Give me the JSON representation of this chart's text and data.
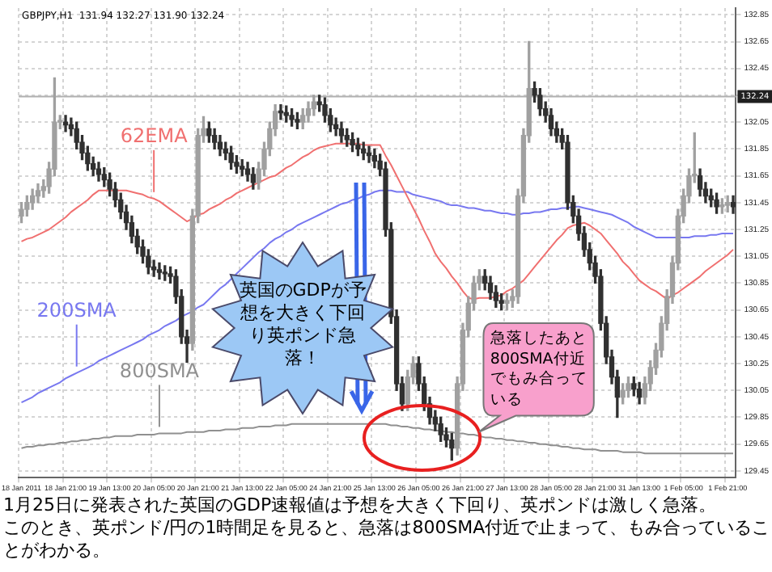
{
  "chart_data": {
    "type": "candlestick",
    "title": "GBPJPY,H1  131.94 132.27 131.90 132.24",
    "colors": [
      "#a0a0a0",
      "#a0a0a0",
      "#a0a0a0",
      "#a0a0a0",
      "#a0a0a0",
      "#a0a0a0",
      "#a0a0a0",
      "#a0a0a0",
      "#303030",
      "#303030",
      "#303030",
      "#303030",
      "#303030",
      "#303030",
      "#303030",
      "#303030",
      "#303030",
      "#303030",
      "#303030",
      "#303030",
      "#303030",
      "#303030",
      "#303030",
      "#303030",
      "#303030",
      "#303030",
      "#303030",
      "#303030",
      "#303030",
      "#303030",
      "#303030",
      "#a0a0a0",
      "#a0a0a0",
      "#a0a0a0",
      "#303030",
      "#303030",
      "#303030",
      "#303030",
      "#303030",
      "#303030",
      "#303030",
      "#303030",
      "#303030",
      "#a0a0a0",
      "#a0a0a0",
      "#a0a0a0",
      "#a0a0a0",
      "#303030",
      "#303030",
      "#303030",
      "#303030",
      "#a0a0a0",
      "#a0a0a0",
      "#a0a0a0",
      "#303030",
      "#303030",
      "#303030",
      "#303030",
      "#303030",
      "#303030",
      "#303030",
      "#303030",
      "#303030",
      "#303030",
      "#303030",
      "#303030",
      "#303030",
      "#303030",
      "#303030",
      "#303030",
      "#a0a0a0",
      "#a0a0a0",
      "#303030",
      "#303030",
      "#303030",
      "#303030",
      "#303030",
      "#303030",
      "#303030",
      "#a0a0a0",
      "#a0a0a0",
      "#a0a0a0",
      "#a0a0a0",
      "#a0a0a0",
      "#303030",
      "#303030",
      "#303030",
      "#303030",
      "#a0a0a0",
      "#a0a0a0",
      "#a0a0a0",
      "#a0a0a0",
      "#a0a0a0",
      "#303030",
      "#303030",
      "#303030",
      "#303030",
      "#303030",
      "#303030",
      "#303030",
      "#303030",
      "#303030",
      "#303030",
      "#303030",
      "#303030",
      "#303030",
      "#303030",
      "#303030",
      "#303030",
      "#a0a0a0",
      "#a0a0a0",
      "#303030",
      "#303030",
      "#a0a0a0",
      "#a0a0a0",
      "#a0a0a0",
      "#a0a0a0",
      "#a0a0a0",
      "#a0a0a0",
      "#a0a0a0",
      "#a0a0a0",
      "#a0a0a0",
      "#a0a0a0",
      "#303030",
      "#303030",
      "#303030",
      "#303030",
      "#a0a0a0",
      "#a0a0a0",
      "#303030"
    ],
    "categories": [
      "18 Jan 2011",
      null,
      null,
      null,
      null,
      null,
      null,
      null,
      "18 Jan 21:00",
      null,
      null,
      null,
      null,
      null,
      null,
      null,
      "19 Jan 13:00",
      null,
      null,
      null,
      null,
      null,
      null,
      null,
      "20 Jan 05:00",
      null,
      null,
      null,
      null,
      null,
      null,
      null,
      "20 Jan 21:00",
      null,
      null,
      null,
      null,
      null,
      null,
      null,
      "21 Jan 13:00",
      null,
      null,
      null,
      null,
      null,
      null,
      null,
      "22 Jan 05:00",
      null,
      null,
      null,
      null,
      null,
      null,
      null,
      "24 Jan 21:00",
      null,
      null,
      null,
      null,
      null,
      null,
      null,
      "25 Jan 13:00",
      null,
      null,
      null,
      null,
      null,
      null,
      null,
      "26 Jan 05:00",
      null,
      null,
      null,
      null,
      null,
      null,
      null,
      "26 Jan 21:00",
      null,
      null,
      null,
      null,
      null,
      null,
      null,
      "27 Jan 13:00",
      null,
      null,
      null,
      null,
      null,
      null,
      null,
      "28 Jan 05:00",
      null,
      null,
      null,
      null,
      null,
      null,
      null,
      "28 Jan 21:00",
      null,
      null,
      null,
      null,
      null,
      null,
      null,
      "31 Jan 13:00",
      null,
      null,
      null,
      null,
      null,
      null,
      null,
      "1 Feb 05:00",
      null,
      null,
      null,
      null,
      null,
      null,
      null,
      "1 Feb 21:00",
      null
    ],
    "ohlc": [
      [
        131.35,
        131.45,
        131.3,
        131.4
      ],
      [
        131.4,
        131.5,
        131.35,
        131.45
      ],
      [
        131.45,
        131.55,
        131.4,
        131.5
      ],
      [
        131.5,
        131.59,
        131.45,
        131.54
      ],
      [
        131.54,
        131.62,
        131.49,
        131.57
      ],
      [
        131.57,
        131.75,
        131.52,
        131.7
      ],
      [
        131.7,
        132.38,
        131.65,
        132.05
      ],
      [
        132.05,
        132.1,
        132.0,
        132.05
      ],
      [
        132.05,
        132.1,
        131.98,
        132.03
      ],
      [
        132.03,
        132.08,
        131.95,
        132.0
      ],
      [
        132.0,
        132.05,
        131.85,
        131.9
      ],
      [
        131.9,
        131.95,
        131.77,
        131.82
      ],
      [
        131.82,
        131.87,
        131.69,
        131.74
      ],
      [
        131.74,
        131.79,
        131.65,
        131.7
      ],
      [
        131.7,
        131.75,
        131.61,
        131.66
      ],
      [
        131.66,
        131.71,
        131.57,
        131.62
      ],
      [
        131.62,
        131.67,
        131.5,
        131.55
      ],
      [
        131.55,
        131.6,
        131.42,
        131.47
      ],
      [
        131.47,
        131.52,
        131.33,
        131.38
      ],
      [
        131.38,
        131.43,
        131.25,
        131.3
      ],
      [
        131.3,
        131.35,
        131.15,
        131.2
      ],
      [
        131.2,
        131.25,
        131.07,
        131.12
      ],
      [
        131.12,
        131.17,
        131.0,
        131.05
      ],
      [
        131.05,
        131.1,
        130.92,
        130.97
      ],
      [
        130.97,
        131.02,
        130.9,
        130.95
      ],
      [
        130.95,
        131.0,
        130.88,
        130.93
      ],
      [
        130.93,
        130.98,
        130.87,
        130.92
      ],
      [
        130.92,
        130.97,
        130.85,
        130.9
      ],
      [
        130.9,
        130.95,
        130.7,
        130.75
      ],
      [
        130.75,
        130.8,
        130.4,
        130.45
      ],
      [
        130.45,
        130.5,
        130.26,
        130.4
      ],
      [
        130.4,
        131.4,
        130.35,
        131.35
      ],
      [
        131.35,
        132.0,
        131.3,
        131.95
      ],
      [
        131.95,
        132.09,
        131.9,
        132.0
      ],
      [
        132.0,
        132.05,
        131.9,
        131.95
      ],
      [
        131.95,
        132.0,
        131.85,
        131.9
      ],
      [
        131.9,
        131.95,
        131.8,
        131.85
      ],
      [
        131.85,
        131.9,
        131.77,
        131.82
      ],
      [
        131.82,
        131.87,
        131.7,
        131.75
      ],
      [
        131.75,
        131.8,
        131.67,
        131.72
      ],
      [
        131.72,
        131.77,
        131.65,
        131.7
      ],
      [
        131.7,
        131.75,
        131.61,
        131.66
      ],
      [
        131.66,
        131.71,
        131.55,
        131.6
      ],
      [
        131.6,
        131.75,
        131.55,
        131.7
      ],
      [
        131.7,
        131.9,
        131.65,
        131.85
      ],
      [
        131.85,
        132.05,
        131.8,
        132.0
      ],
      [
        132.0,
        132.18,
        131.95,
        132.13
      ],
      [
        132.13,
        132.18,
        132.07,
        132.12
      ],
      [
        132.12,
        132.17,
        132.05,
        132.1
      ],
      [
        132.1,
        132.15,
        132.02,
        132.07
      ],
      [
        132.07,
        132.12,
        132.0,
        132.05
      ],
      [
        132.05,
        132.15,
        132.0,
        132.1
      ],
      [
        132.1,
        132.2,
        132.05,
        132.15
      ],
      [
        132.15,
        132.25,
        132.1,
        132.2
      ],
      [
        132.2,
        132.25,
        132.13,
        132.18
      ],
      [
        132.18,
        132.23,
        132.05,
        132.1
      ],
      [
        132.1,
        132.15,
        131.98,
        132.03
      ],
      [
        132.03,
        132.08,
        131.95,
        132.0
      ],
      [
        132.0,
        132.05,
        131.9,
        131.95
      ],
      [
        131.95,
        132.0,
        131.87,
        131.92
      ],
      [
        131.92,
        131.97,
        131.83,
        131.88
      ],
      [
        131.88,
        131.93,
        131.8,
        131.85
      ],
      [
        131.85,
        131.9,
        131.77,
        131.82
      ],
      [
        131.82,
        131.87,
        131.75,
        131.8
      ],
      [
        131.8,
        131.85,
        131.71,
        131.76
      ],
      [
        131.76,
        131.81,
        131.65,
        131.7
      ],
      [
        131.7,
        131.75,
        131.2,
        131.25
      ],
      [
        131.25,
        131.3,
        130.55,
        130.6
      ],
      [
        130.6,
        130.65,
        130.05,
        130.1
      ],
      [
        130.1,
        130.15,
        129.9,
        129.95
      ],
      [
        129.95,
        130.2,
        129.9,
        130.15
      ],
      [
        130.15,
        130.3,
        130.1,
        130.25
      ],
      [
        130.25,
        130.3,
        130.05,
        130.1
      ],
      [
        130.1,
        130.15,
        129.9,
        129.95
      ],
      [
        129.95,
        130.0,
        129.8,
        129.85
      ],
      [
        129.85,
        129.9,
        129.75,
        129.8
      ],
      [
        129.8,
        129.85,
        129.67,
        129.72
      ],
      [
        129.72,
        129.77,
        129.63,
        129.68
      ],
      [
        129.68,
        129.73,
        129.53,
        129.62
      ],
      [
        129.62,
        130.15,
        129.57,
        130.1
      ],
      [
        130.1,
        130.55,
        130.05,
        130.5
      ],
      [
        130.5,
        130.75,
        130.45,
        130.7
      ],
      [
        130.7,
        130.9,
        130.65,
        130.85
      ],
      [
        130.85,
        130.95,
        130.8,
        130.9
      ],
      [
        130.9,
        130.95,
        130.8,
        130.85
      ],
      [
        130.85,
        130.9,
        130.73,
        130.78
      ],
      [
        130.78,
        130.83,
        130.67,
        130.72
      ],
      [
        130.72,
        130.77,
        130.65,
        130.7
      ],
      [
        130.7,
        130.77,
        130.65,
        130.72
      ],
      [
        130.72,
        130.8,
        130.67,
        130.75
      ],
      [
        130.75,
        131.55,
        130.7,
        131.5
      ],
      [
        131.5,
        132.0,
        131.45,
        131.95
      ],
      [
        131.95,
        132.65,
        131.9,
        132.3
      ],
      [
        132.3,
        132.35,
        132.2,
        132.25
      ],
      [
        132.25,
        132.3,
        132.1,
        132.15
      ],
      [
        132.15,
        132.2,
        132.05,
        132.1
      ],
      [
        132.1,
        132.15,
        131.95,
        132.0
      ],
      [
        132.0,
        132.05,
        131.9,
        131.95
      ],
      [
        131.95,
        132.0,
        131.85,
        131.9
      ],
      [
        131.9,
        131.95,
        131.4,
        131.45
      ],
      [
        131.45,
        131.5,
        131.3,
        131.35
      ],
      [
        131.35,
        131.4,
        131.17,
        131.22
      ],
      [
        131.22,
        131.27,
        131.05,
        131.1
      ],
      [
        131.1,
        131.15,
        130.95,
        131.0
      ],
      [
        131.0,
        131.05,
        130.85,
        130.9
      ],
      [
        130.9,
        130.95,
        130.5,
        130.55
      ],
      [
        130.55,
        130.6,
        130.25,
        130.3
      ],
      [
        130.3,
        130.35,
        130.1,
        130.15
      ],
      [
        130.15,
        130.2,
        129.85,
        130.0
      ],
      [
        130.0,
        130.1,
        129.95,
        130.05
      ],
      [
        130.05,
        130.15,
        130.0,
        130.1
      ],
      [
        130.1,
        130.15,
        130.01,
        130.06
      ],
      [
        130.06,
        130.11,
        129.95,
        130.0
      ],
      [
        130.0,
        130.15,
        129.95,
        130.1
      ],
      [
        130.1,
        130.27,
        130.05,
        130.22
      ],
      [
        130.22,
        130.4,
        130.17,
        130.35
      ],
      [
        130.35,
        130.6,
        130.3,
        130.55
      ],
      [
        130.55,
        130.8,
        130.5,
        130.75
      ],
      [
        130.75,
        131.05,
        130.7,
        131.0
      ],
      [
        131.0,
        131.4,
        130.95,
        131.35
      ],
      [
        131.35,
        131.55,
        131.3,
        131.5
      ],
      [
        131.5,
        131.7,
        131.45,
        131.65
      ],
      [
        131.65,
        131.97,
        131.6,
        131.65
      ],
      [
        131.65,
        131.7,
        131.5,
        131.55
      ],
      [
        131.55,
        131.6,
        131.45,
        131.5
      ],
      [
        131.5,
        131.55,
        131.42,
        131.47
      ],
      [
        131.47,
        131.52,
        131.37,
        131.42
      ],
      [
        131.42,
        131.48,
        131.37,
        131.43
      ],
      [
        131.43,
        131.5,
        131.38,
        131.45
      ],
      [
        131.45,
        131.5,
        131.37,
        131.42
      ]
    ],
    "series": [
      {
        "type": "line",
        "name": "62EMA",
        "color": "#f07070",
        "values": [
          131.16,
          131.18,
          131.19,
          131.21,
          131.23,
          131.25,
          131.28,
          131.31,
          131.34,
          131.38,
          131.41,
          131.44,
          131.47,
          131.51,
          131.54,
          131.54,
          131.54,
          131.54,
          131.54,
          131.54,
          131.53,
          131.52,
          131.51,
          131.49,
          131.48,
          131.46,
          131.43,
          131.4,
          131.37,
          131.34,
          131.31,
          131.33,
          131.36,
          131.37,
          131.4,
          131.42,
          131.44,
          131.47,
          131.49,
          131.52,
          131.54,
          131.56,
          131.58,
          131.6,
          131.62,
          131.64,
          131.65,
          131.68,
          131.71,
          131.73,
          131.76,
          131.79,
          131.81,
          131.84,
          131.86,
          131.87,
          131.88,
          131.89,
          131.89,
          131.89,
          131.89,
          131.89,
          131.88,
          131.88,
          131.88,
          131.88,
          131.8,
          131.73,
          131.65,
          131.57,
          131.49,
          131.41,
          131.33,
          131.24,
          131.16,
          131.07,
          131.01,
          130.96,
          130.9,
          130.85,
          130.79,
          130.74,
          130.73,
          130.74,
          130.74,
          130.74,
          130.75,
          130.76,
          130.79,
          130.81,
          130.84,
          130.87,
          130.92,
          130.97,
          131.02,
          131.07,
          131.12,
          131.17,
          131.21,
          131.26,
          131.28,
          131.29,
          131.3,
          131.28,
          131.25,
          131.22,
          131.17,
          131.12,
          131.07,
          131.01,
          130.97,
          130.92,
          130.87,
          130.84,
          130.81,
          130.79,
          130.76,
          130.73,
          130.76,
          130.78,
          130.81,
          130.84,
          130.87,
          130.9,
          130.94,
          130.97,
          131.0,
          131.03,
          131.06,
          131.1
        ]
      },
      {
        "type": "line",
        "name": "200SMA",
        "color": "#7878f0",
        "values": [
          129.96,
          129.98,
          130.0,
          130.03,
          130.05,
          130.07,
          130.09,
          130.11,
          130.14,
          130.16,
          130.18,
          130.2,
          130.22,
          130.24,
          130.27,
          130.29,
          130.31,
          130.33,
          130.35,
          130.37,
          130.39,
          130.41,
          130.43,
          130.46,
          130.48,
          130.5,
          130.53,
          130.55,
          130.57,
          130.6,
          130.62,
          130.64,
          130.67,
          130.69,
          130.73,
          130.77,
          130.81,
          130.84,
          130.88,
          130.92,
          130.96,
          131.0,
          131.04,
          131.08,
          131.11,
          131.15,
          131.18,
          131.2,
          131.23,
          131.25,
          131.28,
          131.3,
          131.32,
          131.34,
          131.36,
          131.38,
          131.4,
          131.42,
          131.44,
          131.45,
          131.47,
          131.48,
          131.5,
          131.51,
          131.53,
          131.54,
          131.54,
          131.54,
          131.53,
          131.53,
          131.53,
          131.51,
          131.5,
          131.49,
          131.48,
          131.47,
          131.46,
          131.44,
          131.43,
          131.43,
          131.42,
          131.41,
          131.41,
          131.4,
          131.39,
          131.39,
          131.38,
          131.37,
          131.37,
          131.36,
          131.36,
          131.37,
          131.37,
          131.38,
          131.38,
          131.39,
          131.4,
          131.4,
          131.41,
          131.41,
          131.42,
          131.42,
          131.41,
          131.4,
          131.39,
          131.38,
          131.37,
          131.36,
          131.34,
          131.32,
          131.3,
          131.27,
          131.25,
          131.23,
          131.21,
          131.19,
          131.19,
          131.19,
          131.19,
          131.19,
          131.19,
          131.19,
          131.2,
          131.2,
          131.2,
          131.21,
          131.21,
          131.22,
          131.22,
          131.22
        ]
      },
      {
        "type": "line",
        "name": "800SMA",
        "color": "#909090",
        "values": [
          129.62,
          129.63,
          129.63,
          129.64,
          129.64,
          129.65,
          129.65,
          129.66,
          129.66,
          129.67,
          129.67,
          129.68,
          129.68,
          129.69,
          129.69,
          129.7,
          129.7,
          129.71,
          129.71,
          129.71,
          129.71,
          129.72,
          129.72,
          129.72,
          129.72,
          129.73,
          129.73,
          129.73,
          129.73,
          129.73,
          129.74,
          129.74,
          129.74,
          129.74,
          129.75,
          129.75,
          129.75,
          129.76,
          129.76,
          129.76,
          129.77,
          129.77,
          129.77,
          129.78,
          129.78,
          129.78,
          129.79,
          129.79,
          129.79,
          129.8,
          129.8,
          129.8,
          129.8,
          129.8,
          129.8,
          129.8,
          129.8,
          129.8,
          129.8,
          129.8,
          129.8,
          129.8,
          129.8,
          129.8,
          129.8,
          129.8,
          129.8,
          129.79,
          129.79,
          129.78,
          129.78,
          129.77,
          129.77,
          129.76,
          129.76,
          129.75,
          129.75,
          129.74,
          129.74,
          129.73,
          129.73,
          129.72,
          129.72,
          129.71,
          129.7,
          129.7,
          129.69,
          129.69,
          129.68,
          129.68,
          129.67,
          129.67,
          129.66,
          129.66,
          129.65,
          129.65,
          129.64,
          129.64,
          129.63,
          129.63,
          129.62,
          129.62,
          129.61,
          129.61,
          129.61,
          129.6,
          129.6,
          129.6,
          129.6,
          129.59,
          129.59,
          129.59,
          129.59,
          129.58,
          129.58,
          129.58,
          129.58,
          129.58,
          129.58,
          129.58,
          129.58,
          129.58,
          129.58,
          129.58,
          129.58,
          129.58,
          129.58,
          129.58,
          129.58,
          129.58
        ]
      }
    ],
    "ylim": [
      129.4,
      132.9
    ],
    "yticks": [
      129.45,
      129.65,
      129.85,
      130.05,
      130.25,
      130.45,
      130.65,
      130.85,
      131.05,
      131.25,
      131.45,
      131.65,
      131.85,
      132.05,
      {
        "value": 132.25,
        "label": null
      },
      132.45,
      132.65,
      132.85
    ],
    "ref_lines": [
      {
        "axis": "y",
        "value": 132.24,
        "label": "132.24",
        "color": "#b0b0b0"
      }
    ],
    "grid": true,
    "legend": false,
    "annotations": [
      "英国のGDPが予想を大きく下回り英ポンド急落！",
      "急落したあと800SMA付近でもみ合っている",
      "1月25日に発表された英国のGDP速報値は予想を大きく下回り、英ポンドは激しく急落。",
      "このとき、英ポンド/円の1時間足を見ると、急落は800SMA付近で止まって、もみ合っていることがわかる。"
    ]
  }
}
